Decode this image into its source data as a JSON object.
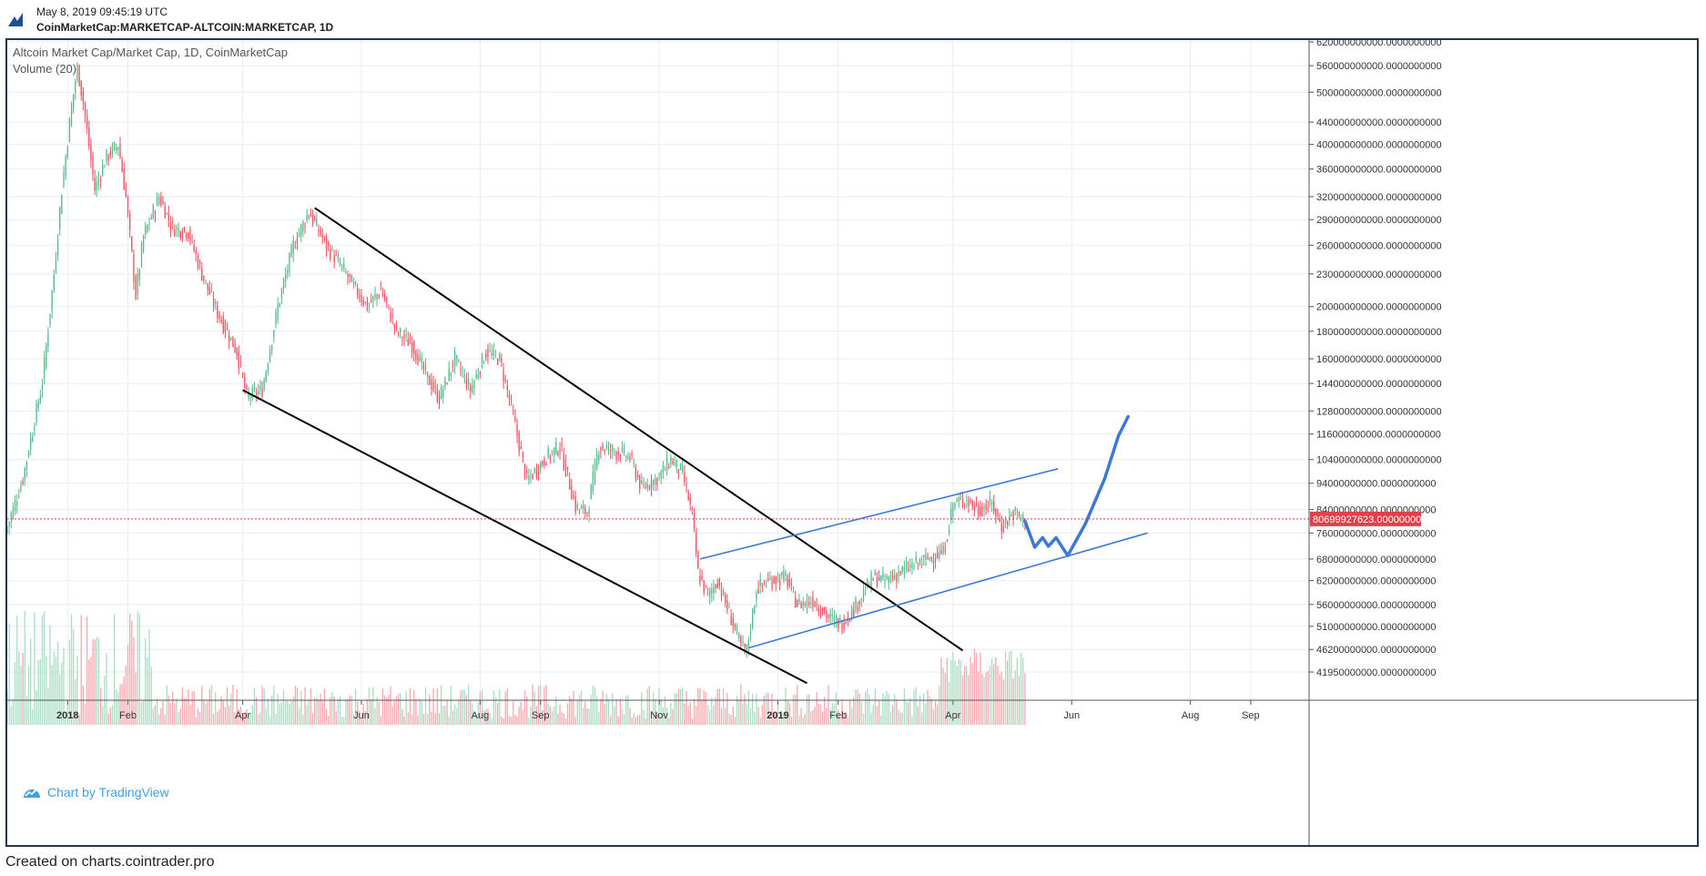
{
  "header": {
    "date": "May 8, 2019 09:45:19 UTC",
    "symbol": "CoinMarketCap:MARKETCAP-ALTCOIN:MARKETCAP, 1D"
  },
  "legend": {
    "title": "Altcoin Market Cap/Market Cap, 1D, CoinMarketCap",
    "volume": "Volume (20)"
  },
  "branding": {
    "label": "Chart by TradingView",
    "icon": "tradingview-logo-icon"
  },
  "footer": {
    "text": "Created on charts.cointrader.pro"
  },
  "colors": {
    "up": "#53b987",
    "down": "#eb4d5c",
    "up_volume": "#a9dcc3",
    "down_volume": "#f5a6ae",
    "trendline": "#000000",
    "channel": "#3c78d8",
    "projection": "#3c78d8",
    "price_line": "#e0404a",
    "grid": "#e6eef5",
    "frame": "#253548"
  },
  "chart_data": {
    "type": "candlestick",
    "title": "Altcoin Market Cap/Market Cap, 1D, CoinMarketCap",
    "scale": "log",
    "x_ticks": [
      "2018",
      "Feb",
      "Apr",
      "Jun",
      "Aug",
      "Sep",
      "Nov",
      "2019",
      "Feb",
      "Apr",
      "Jun",
      "Aug",
      "Sep"
    ],
    "x_tick_dates": [
      "2018-01-01",
      "2018-02-01",
      "2018-04-01",
      "2018-06-01",
      "2018-08-01",
      "2018-09-01",
      "2018-11-01",
      "2019-01-01",
      "2019-02-01",
      "2019-04-01",
      "2019-06-01",
      "2019-08-01",
      "2019-09-01"
    ],
    "x_range": [
      "2017-12-01",
      "2019-10-01"
    ],
    "y_ticks": [
      {
        "value": 620000000000,
        "label": "620000000000.0000000000"
      },
      {
        "value": 560000000000,
        "label": "560000000000.0000000000"
      },
      {
        "value": 500000000000,
        "label": "500000000000.0000000000"
      },
      {
        "value": 440000000000,
        "label": "440000000000.0000000000"
      },
      {
        "value": 400000000000,
        "label": "400000000000.0000000000"
      },
      {
        "value": 360000000000,
        "label": "360000000000.0000000000"
      },
      {
        "value": 320000000000,
        "label": "320000000000.0000000000"
      },
      {
        "value": 290000000000,
        "label": "290000000000.0000000000"
      },
      {
        "value": 260000000000,
        "label": "260000000000.0000000000"
      },
      {
        "value": 230000000000,
        "label": "230000000000.0000000000"
      },
      {
        "value": 200000000000,
        "label": "200000000000.0000000000"
      },
      {
        "value": 180000000000,
        "label": "180000000000.0000000000"
      },
      {
        "value": 160000000000,
        "label": "160000000000.0000000000"
      },
      {
        "value": 144000000000,
        "label": "144000000000.0000000000"
      },
      {
        "value": 128000000000,
        "label": "128000000000.0000000000"
      },
      {
        "value": 116000000000,
        "label": "116000000000.0000000000"
      },
      {
        "value": 104000000000,
        "label": "104000000000.0000000000"
      },
      {
        "value": 94000000000,
        "label": "94000000000.0000000000"
      },
      {
        "value": 84000000000,
        "label": "84000000000.0000000000"
      },
      {
        "value": 76000000000,
        "label": "76000000000.0000000000"
      },
      {
        "value": 68000000000,
        "label": "68000000000.0000000000"
      },
      {
        "value": 62000000000,
        "label": "62000000000.0000000000"
      },
      {
        "value": 56000000000,
        "label": "56000000000.0000000000"
      },
      {
        "value": 51000000000,
        "label": "51000000000.0000000000"
      },
      {
        "value": 46200000000,
        "label": "46200000000.0000000000"
      },
      {
        "value": 41950000000,
        "label": "41950000000.0000000000"
      }
    ],
    "last_price": {
      "value": 80699927623,
      "label": "80699927623.0000000000"
    },
    "price_path": [
      [
        "2017-12-01",
        76000000000
      ],
      [
        "2017-12-10",
        96000000000
      ],
      [
        "2017-12-20",
        145000000000
      ],
      [
        "2017-12-26",
        230000000000
      ],
      [
        "2017-12-30",
        330000000000
      ],
      [
        "2018-01-04",
        470000000000
      ],
      [
        "2018-01-07",
        555000000000
      ],
      [
        "2018-01-10",
        480000000000
      ],
      [
        "2018-01-16",
        330000000000
      ],
      [
        "2018-01-22",
        380000000000
      ],
      [
        "2018-01-28",
        400000000000
      ],
      [
        "2018-02-01",
        320000000000
      ],
      [
        "2018-02-06",
        210000000000
      ],
      [
        "2018-02-10",
        270000000000
      ],
      [
        "2018-02-18",
        320000000000
      ],
      [
        "2018-02-25",
        280000000000
      ],
      [
        "2018-03-05",
        275000000000
      ],
      [
        "2018-03-12",
        230000000000
      ],
      [
        "2018-03-20",
        195000000000
      ],
      [
        "2018-03-30",
        165000000000
      ],
      [
        "2018-04-04",
        136000000000
      ],
      [
        "2018-04-12",
        140000000000
      ],
      [
        "2018-04-20",
        200000000000
      ],
      [
        "2018-04-28",
        260000000000
      ],
      [
        "2018-05-06",
        300000000000
      ],
      [
        "2018-05-15",
        260000000000
      ],
      [
        "2018-05-25",
        230000000000
      ],
      [
        "2018-06-05",
        200000000000
      ],
      [
        "2018-06-12",
        215000000000
      ],
      [
        "2018-06-20",
        180000000000
      ],
      [
        "2018-06-28",
        170000000000
      ],
      [
        "2018-07-05",
        150000000000
      ],
      [
        "2018-07-12",
        135000000000
      ],
      [
        "2018-07-20",
        160000000000
      ],
      [
        "2018-07-28",
        140000000000
      ],
      [
        "2018-08-05",
        165000000000
      ],
      [
        "2018-08-12",
        160000000000
      ],
      [
        "2018-08-18",
        130000000000
      ],
      [
        "2018-08-26",
        95000000000
      ],
      [
        "2018-09-05",
        105000000000
      ],
      [
        "2018-09-12",
        110000000000
      ],
      [
        "2018-09-20",
        85000000000
      ],
      [
        "2018-09-26",
        83000000000
      ],
      [
        "2018-10-02",
        110000000000
      ],
      [
        "2018-10-10",
        108000000000
      ],
      [
        "2018-10-18",
        105000000000
      ],
      [
        "2018-10-24",
        92000000000
      ],
      [
        "2018-11-01",
        96000000000
      ],
      [
        "2018-11-08",
        104000000000
      ],
      [
        "2018-11-14",
        98000000000
      ],
      [
        "2018-11-19",
        82000000000
      ],
      [
        "2018-11-22",
        64000000000
      ],
      [
        "2018-11-27",
        58000000000
      ],
      [
        "2018-12-02",
        62000000000
      ],
      [
        "2018-12-08",
        54000000000
      ],
      [
        "2018-12-14",
        47000000000
      ],
      [
        "2018-12-17",
        46000000000
      ],
      [
        "2018-12-22",
        60000000000
      ],
      [
        "2018-12-28",
        62000000000
      ],
      [
        "2019-01-06",
        63000000000
      ],
      [
        "2019-01-12",
        56000000000
      ],
      [
        "2019-01-20",
        57000000000
      ],
      [
        "2019-01-28",
        53000000000
      ],
      [
        "2019-02-04",
        51500000000
      ],
      [
        "2019-02-10",
        55000000000
      ],
      [
        "2019-02-20",
        63000000000
      ],
      [
        "2019-02-26",
        62000000000
      ],
      [
        "2019-03-05",
        64000000000
      ],
      [
        "2019-03-15",
        67000000000
      ],
      [
        "2019-03-28",
        70000000000
      ],
      [
        "2019-04-02",
        86000000000
      ],
      [
        "2019-04-08",
        88000000000
      ],
      [
        "2019-04-15",
        84000000000
      ],
      [
        "2019-04-22",
        86000000000
      ],
      [
        "2019-04-27",
        78000000000
      ],
      [
        "2019-05-03",
        83000000000
      ],
      [
        "2019-05-08",
        80699927623
      ]
    ],
    "annotations": [
      {
        "type": "trendline",
        "name": "falling-wedge-upper",
        "points": [
          [
            "2018-05-08",
            305000000000
          ],
          [
            "2019-04-06",
            46000000000
          ]
        ]
      },
      {
        "type": "trendline",
        "name": "falling-wedge-lower",
        "points": [
          [
            "2018-04-01",
            140000000000
          ],
          [
            "2019-01-16",
            40000000000
          ]
        ]
      },
      {
        "type": "channel",
        "name": "channel-upper",
        "points": [
          [
            "2018-11-22",
            68000000000
          ],
          [
            "2019-05-25",
            100000000000
          ]
        ]
      },
      {
        "type": "channel",
        "name": "channel-lower",
        "points": [
          [
            "2018-12-17",
            46500000000
          ],
          [
            "2019-07-10",
            76000000000
          ]
        ]
      },
      {
        "type": "projection",
        "name": "projected-path",
        "points": [
          [
            "2019-05-08",
            80000000000
          ],
          [
            "2019-05-13",
            71500000000
          ],
          [
            "2019-05-17",
            74500000000
          ],
          [
            "2019-05-20",
            71800000000
          ],
          [
            "2019-05-24",
            74500000000
          ],
          [
            "2019-05-30",
            69000000000
          ],
          [
            "2019-06-08",
            79000000000
          ],
          [
            "2019-06-18",
            96000000000
          ],
          [
            "2019-06-25",
            115000000000
          ],
          [
            "2019-06-30",
            125000000000
          ]
        ]
      }
    ]
  }
}
